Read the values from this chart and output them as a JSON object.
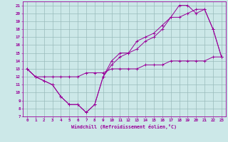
{
  "xlabel": "Windchill (Refroidissement éolien,°C)",
  "xlim": [
    -0.5,
    23.5
  ],
  "ylim": [
    7,
    21.5
  ],
  "xticks": [
    0,
    1,
    2,
    3,
    4,
    5,
    6,
    7,
    8,
    9,
    10,
    11,
    12,
    13,
    14,
    15,
    16,
    17,
    18,
    19,
    20,
    21,
    22,
    23
  ],
  "yticks": [
    7,
    8,
    9,
    10,
    11,
    12,
    13,
    14,
    15,
    16,
    17,
    18,
    19,
    20,
    21
  ],
  "bg_color": "#cce8e8",
  "line_color": "#990099",
  "grid_color": "#99bbbb",
  "line1_x": [
    0,
    1,
    2,
    3,
    4,
    5,
    6,
    7,
    8,
    9,
    10,
    11,
    12,
    13,
    14,
    15,
    16,
    17,
    18,
    19,
    20,
    21,
    22,
    23
  ],
  "line1_y": [
    13.0,
    12.0,
    11.5,
    11.0,
    9.5,
    8.5,
    8.5,
    7.5,
    8.5,
    12.0,
    13.5,
    14.5,
    15.0,
    15.5,
    16.5,
    17.0,
    18.0,
    19.5,
    19.5,
    20.0,
    20.5,
    20.5,
    18.0,
    14.5
  ],
  "line2_x": [
    0,
    1,
    2,
    3,
    4,
    5,
    6,
    7,
    8,
    9,
    10,
    11,
    12,
    13,
    14,
    15,
    16,
    17,
    18,
    19,
    20,
    21,
    22,
    23
  ],
  "line2_y": [
    13.0,
    12.0,
    11.5,
    11.0,
    9.5,
    8.5,
    8.5,
    7.5,
    8.5,
    12.0,
    14.0,
    15.0,
    15.0,
    16.5,
    17.0,
    17.5,
    18.5,
    19.5,
    21.0,
    21.0,
    20.0,
    20.5,
    18.0,
    14.5
  ],
  "line3_x": [
    0,
    1,
    2,
    3,
    4,
    5,
    6,
    7,
    8,
    9,
    10,
    11,
    12,
    13,
    14,
    15,
    16,
    17,
    18,
    19,
    20,
    21,
    22,
    23
  ],
  "line3_y": [
    13.0,
    12.0,
    12.0,
    12.0,
    12.0,
    12.0,
    12.0,
    12.5,
    12.5,
    12.5,
    13.0,
    13.0,
    13.0,
    13.0,
    13.5,
    13.5,
    13.5,
    14.0,
    14.0,
    14.0,
    14.0,
    14.0,
    14.5,
    14.5
  ]
}
